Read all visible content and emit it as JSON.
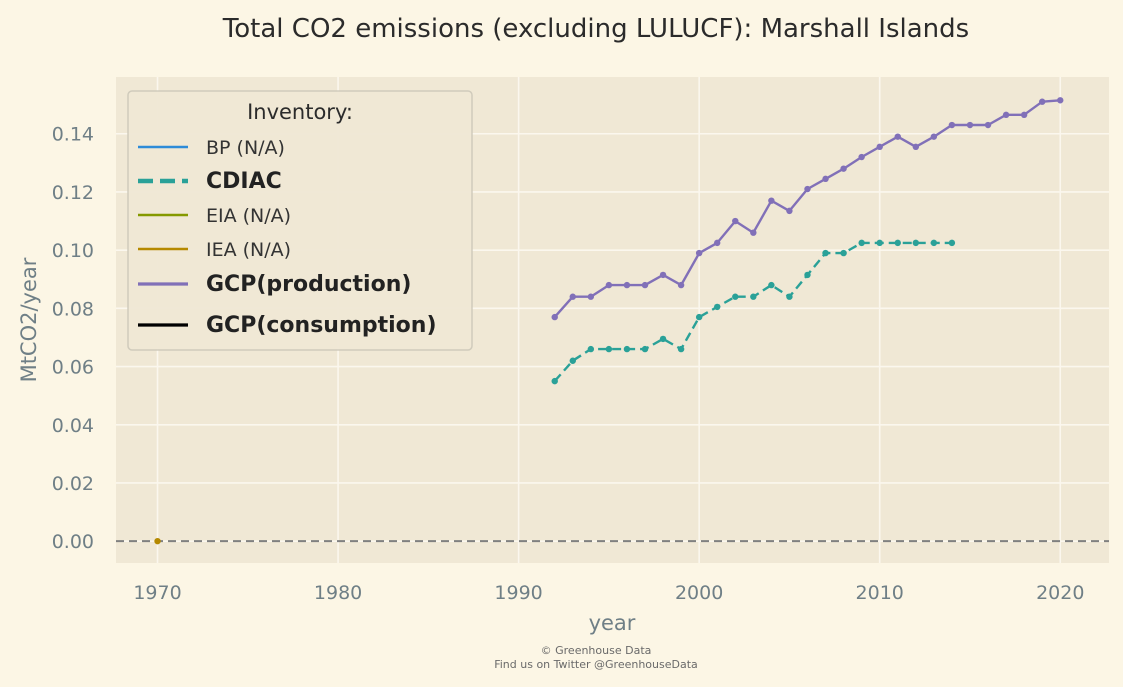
{
  "chart_data": {
    "type": "line",
    "title": "Total CO2 emissions (excluding LULUCF): Marshall Islands",
    "xlabel": "year",
    "ylabel": "MtCO2/year",
    "xlim": [
      1967.7,
      2022.7
    ],
    "ylim": [
      -0.0075,
      0.1595
    ],
    "x_ticks": [
      1970,
      1980,
      1990,
      2000,
      2010,
      2020
    ],
    "y_ticks": [
      0.0,
      0.02,
      0.04,
      0.06,
      0.08,
      0.1,
      0.12,
      0.14
    ],
    "y_tick_labels": [
      "0.00",
      "0.02",
      "0.04",
      "0.06",
      "0.08",
      "0.10",
      "0.12",
      "0.14"
    ],
    "grid": true,
    "reference_line": {
      "y": 0.0,
      "style": "dashed",
      "color": "#808080"
    },
    "legend": {
      "title": "Inventory:",
      "placement": "top-left",
      "entries": [
        {
          "label": "BP (N/A)",
          "color": "#2e8bd8",
          "style": "solid",
          "bold": false
        },
        {
          "label": "CDIAC",
          "color": "#2aa198",
          "style": "dashed",
          "bold": true
        },
        {
          "label": "EIA (N/A)",
          "color": "#859900",
          "style": "solid",
          "bold": false
        },
        {
          "label": "IEA (N/A)",
          "color": "#b58900",
          "style": "solid",
          "bold": false
        },
        {
          "label": "GCP(production)",
          "color": "#8170b8",
          "style": "solid",
          "bold": true
        },
        {
          "label": "GCP(consumption)",
          "color": "#000000",
          "style": "solid",
          "bold": true
        }
      ]
    },
    "series": [
      {
        "name": "GCP(production)",
        "color": "#8170b8",
        "style": "solid",
        "x": [
          1992,
          1993,
          1994,
          1995,
          1996,
          1997,
          1998,
          1999,
          2000,
          2001,
          2002,
          2003,
          2004,
          2005,
          2006,
          2007,
          2008,
          2009,
          2010,
          2011,
          2012,
          2013,
          2014,
          2015,
          2016,
          2017,
          2018,
          2019,
          2020
        ],
        "y": [
          0.077,
          0.084,
          0.084,
          0.088,
          0.088,
          0.088,
          0.0915,
          0.088,
          0.099,
          0.1025,
          0.11,
          0.106,
          0.117,
          0.1135,
          0.121,
          0.1245,
          0.128,
          0.132,
          0.1355,
          0.139,
          0.1355,
          0.139,
          0.143,
          0.143,
          0.143,
          0.1465,
          0.1465,
          0.151,
          0.1515
        ]
      },
      {
        "name": "CDIAC",
        "color": "#2aa198",
        "style": "dashed",
        "x": [
          1992,
          1993,
          1994,
          1995,
          1996,
          1997,
          1998,
          1999,
          2000,
          2001,
          2002,
          2003,
          2004,
          2005,
          2006,
          2007,
          2008,
          2009,
          2010,
          2011,
          2012,
          2013,
          2014
        ],
        "y": [
          0.055,
          0.062,
          0.066,
          0.066,
          0.066,
          0.066,
          0.0695,
          0.066,
          0.077,
          0.0805,
          0.084,
          0.084,
          0.088,
          0.084,
          0.0915,
          0.099,
          0.099,
          0.1025,
          0.1025,
          0.1025,
          0.1025,
          0.1025,
          0.1025
        ]
      },
      {
        "name": "IEA (N/A)",
        "color": "#b58900",
        "style": "solid",
        "x": [
          1970
        ],
        "y": [
          0.0
        ]
      }
    ],
    "footer": [
      "© Greenhouse Data",
      "Find us on Twitter @GreenhouseData"
    ]
  }
}
